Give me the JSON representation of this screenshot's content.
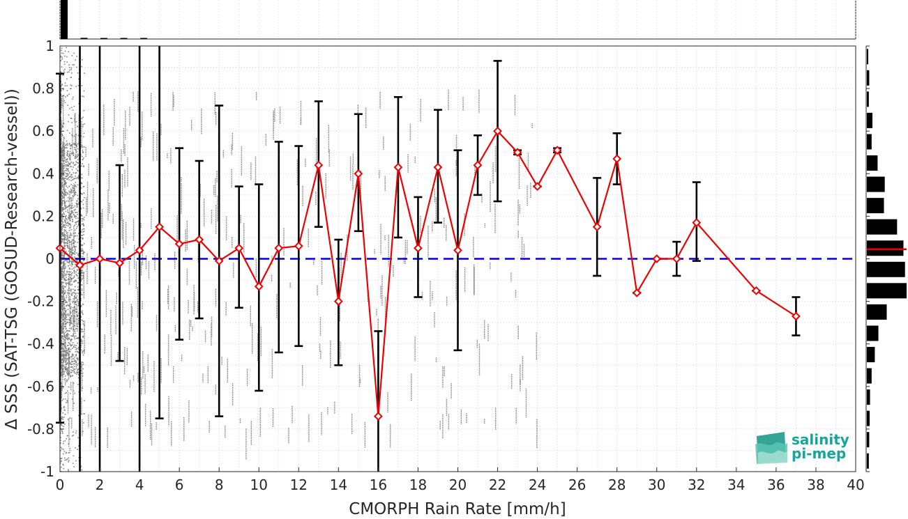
{
  "chart_data": {
    "type": "scatter",
    "xlabel": "CMORPH Rain Rate [mm/h]",
    "ylabel": "Δ SSS (SAT-TSG (GOSUD-Research-vessel))",
    "xlim": [
      0,
      40
    ],
    "ylim": [
      -1,
      1
    ],
    "xticks": [
      "0",
      "2",
      "4",
      "6",
      "8",
      "10",
      "12",
      "14",
      "16",
      "18",
      "20",
      "22",
      "24",
      "26",
      "28",
      "30",
      "32",
      "34",
      "36",
      "38",
      "40"
    ],
    "yticks": [
      "-1",
      "-0.8",
      "-0.6",
      "-0.4",
      "-0.2",
      "0",
      "0.2",
      "0.4",
      "0.6",
      "0.8",
      "1"
    ],
    "grid": true,
    "reference_line": {
      "y": 0,
      "color": "#0000dd",
      "style": "dashed"
    },
    "scatter_color": "#808080",
    "series": [
      {
        "color": "#ee0000",
        "marker": "diamond",
        "points": [
          {
            "x": 0,
            "y": 0.05,
            "lo": -0.77,
            "hi": 0.87
          },
          {
            "x": 1,
            "y": -0.03,
            "lo": -1.0,
            "hi": 1.0
          },
          {
            "x": 2,
            "y": 0.0,
            "lo": -1.0,
            "hi": 1.0
          },
          {
            "x": 3,
            "y": -0.02,
            "lo": -0.48,
            "hi": 0.44
          },
          {
            "x": 4,
            "y": 0.04,
            "lo": -1.0,
            "hi": 1.0
          },
          {
            "x": 5,
            "y": 0.15,
            "lo": -0.75,
            "hi": 1.0
          },
          {
            "x": 6,
            "y": 0.07,
            "lo": -0.38,
            "hi": 0.52
          },
          {
            "x": 7,
            "y": 0.09,
            "lo": -0.28,
            "hi": 0.46
          },
          {
            "x": 8,
            "y": -0.01,
            "lo": -0.74,
            "hi": 0.72
          },
          {
            "x": 9,
            "y": 0.05,
            "lo": -0.23,
            "hi": 0.34
          },
          {
            "x": 10,
            "y": -0.13,
            "lo": -0.62,
            "hi": 0.35
          },
          {
            "x": 11,
            "y": 0.05,
            "lo": -0.44,
            "hi": 0.55
          },
          {
            "x": 12,
            "y": 0.06,
            "lo": -0.41,
            "hi": 0.53
          },
          {
            "x": 13,
            "y": 0.44,
            "lo": 0.15,
            "hi": 0.74
          },
          {
            "x": 14,
            "y": -0.2,
            "lo": -0.5,
            "hi": 0.09
          },
          {
            "x": 15,
            "y": 0.4,
            "lo": 0.13,
            "hi": 0.68
          },
          {
            "x": 16,
            "y": -0.74,
            "lo": -1.0,
            "hi": -0.34
          },
          {
            "x": 17,
            "y": 0.43,
            "lo": 0.1,
            "hi": 0.76
          },
          {
            "x": 18,
            "y": 0.05,
            "lo": -0.18,
            "hi": 0.29
          },
          {
            "x": 19,
            "y": 0.43,
            "lo": 0.17,
            "hi": 0.7
          },
          {
            "x": 20,
            "y": 0.04,
            "lo": -0.43,
            "hi": 0.51
          },
          {
            "x": 21,
            "y": 0.44,
            "lo": 0.3,
            "hi": 0.58
          },
          {
            "x": 22,
            "y": 0.6,
            "lo": 0.27,
            "hi": 0.93
          },
          {
            "x": 23,
            "y": 0.5,
            "lo": 0.49,
            "hi": 0.51
          },
          {
            "x": 24,
            "y": 0.34,
            "lo": 0.34,
            "hi": 0.34
          },
          {
            "x": 25,
            "y": 0.51,
            "lo": 0.5,
            "hi": 0.52
          },
          {
            "x": 27,
            "y": 0.15,
            "lo": -0.08,
            "hi": 0.38
          },
          {
            "x": 28,
            "y": 0.47,
            "lo": 0.35,
            "hi": 0.59
          },
          {
            "x": 29,
            "y": -0.16,
            "lo": -0.16,
            "hi": -0.16
          },
          {
            "x": 30,
            "y": 0.0,
            "lo": 0.0,
            "hi": 0.0
          },
          {
            "x": 31,
            "y": 0.0,
            "lo": -0.08,
            "hi": 0.08
          },
          {
            "x": 32,
            "y": 0.17,
            "lo": -0.01,
            "hi": 0.36
          },
          {
            "x": 35,
            "y": -0.15,
            "lo": -0.15,
            "hi": -0.15
          },
          {
            "x": 37,
            "y": -0.27,
            "lo": -0.36,
            "hi": -0.18
          }
        ]
      }
    ],
    "top_histogram": {
      "bins_x": [
        0,
        1,
        2,
        3,
        4
      ],
      "relative_counts": [
        1.0,
        0.03,
        0.02,
        0.015,
        0.01
      ]
    },
    "right_histogram": {
      "bins_y": [
        0.95,
        0.85,
        0.75,
        0.65,
        0.55,
        0.45,
        0.35,
        0.25,
        0.15,
        0.05,
        -0.05,
        -0.15,
        -0.25,
        -0.35,
        -0.45,
        -0.55,
        -0.65,
        -0.75,
        -0.85,
        -0.95
      ],
      "relative_counts": [
        0.03,
        0.06,
        0.05,
        0.14,
        0.12,
        0.27,
        0.45,
        0.43,
        0.76,
        0.92,
        0.96,
        1.0,
        0.5,
        0.29,
        0.2,
        0.12,
        0.08,
        0.07,
        0.06,
        0.05
      ],
      "median_y": 0.045,
      "median_color": "#ee0000"
    }
  },
  "logo": {
    "line1": "salinity",
    "line2": "pi-mep"
  }
}
